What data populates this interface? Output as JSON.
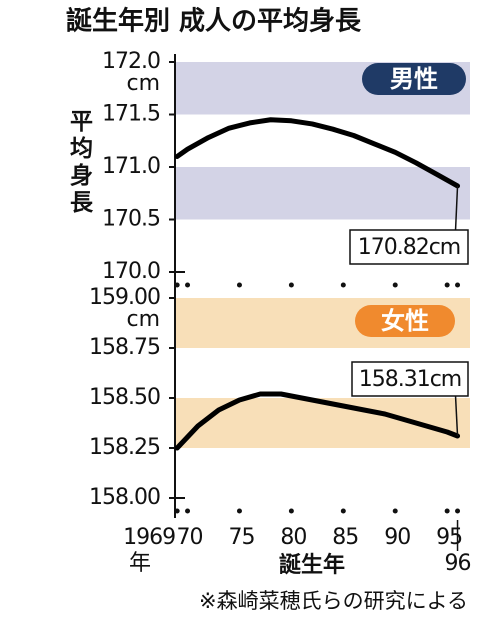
{
  "title": "誕生年別 成人の平均身長",
  "source": "※森崎菜穂氏らの研究による",
  "chart_data": [
    {
      "type": "line",
      "name": "男性",
      "badge_color": "#1f3a66",
      "color": "#000000",
      "band_color": "#d3d3e6",
      "ylabel": "平均身長",
      "y_unit": "cm",
      "x": [
        1969,
        1970,
        1972,
        1974,
        1976,
        1978,
        1980,
        1982,
        1984,
        1986,
        1988,
        1990,
        1992,
        1994,
        1996
      ],
      "values": [
        171.1,
        171.17,
        171.28,
        171.37,
        171.42,
        171.45,
        171.44,
        171.41,
        171.36,
        171.3,
        171.22,
        171.14,
        171.04,
        170.93,
        170.82
      ],
      "value_labels": [
        null,
        null,
        null,
        null,
        null,
        null,
        null,
        null,
        null,
        null,
        null,
        null,
        null,
        null,
        "170.82cm"
      ],
      "xlim": [
        1968.6,
        1997.2
      ],
      "xticks": [
        1969,
        1970,
        1975,
        1980,
        1985,
        1990,
        1995,
        1996
      ],
      "show_xtick_labels": false,
      "ylim": [
        170,
        172
      ],
      "yticks": [
        {
          "value": 170,
          "label": "170.0"
        },
        170.5,
        {
          "value": 171,
          "label": "171.0"
        },
        171.5,
        {
          "value": 172,
          "label": "172.0"
        }
      ]
    },
    {
      "type": "line",
      "name": "女性",
      "badge_color": "#f08a2e",
      "color": "#000000",
      "band_color": "#f8dfb8",
      "y_unit": "cm",
      "xlabel": "誕生年",
      "x_unit": "年",
      "x": [
        1969,
        1971,
        1973,
        1975,
        1977,
        1979,
        1981,
        1983,
        1985,
        1987,
        1989,
        1991,
        1993,
        1995,
        1996
      ],
      "values": [
        158.25,
        158.36,
        158.44,
        158.49,
        158.52,
        158.52,
        158.5,
        158.48,
        158.46,
        158.44,
        158.42,
        158.39,
        158.36,
        158.33,
        158.31
      ],
      "value_labels": [
        null,
        null,
        null,
        null,
        null,
        null,
        null,
        null,
        null,
        null,
        null,
        null,
        null,
        null,
        "158.31cm"
      ],
      "xlim": [
        1968.6,
        1997.2
      ],
      "xticks": [
        1969,
        {
          "value": 1970,
          "label": "70"
        },
        {
          "value": 1975,
          "label": "75"
        },
        {
          "value": 1980,
          "label": "80"
        },
        {
          "value": 1985,
          "label": "85"
        },
        {
          "value": 1990,
          "label": "90"
        },
        {
          "value": 1995,
          "label": "95"
        },
        {
          "value": 1996,
          "label": "96"
        }
      ],
      "show_xtick_labels": true,
      "ylim": [
        158,
        159
      ],
      "yticks": [
        {
          "value": 158,
          "label": "158.00"
        },
        158.25,
        {
          "value": 158.5,
          "label": "158.50"
        },
        158.75,
        {
          "value": 159,
          "label": "159.00"
        }
      ]
    }
  ]
}
